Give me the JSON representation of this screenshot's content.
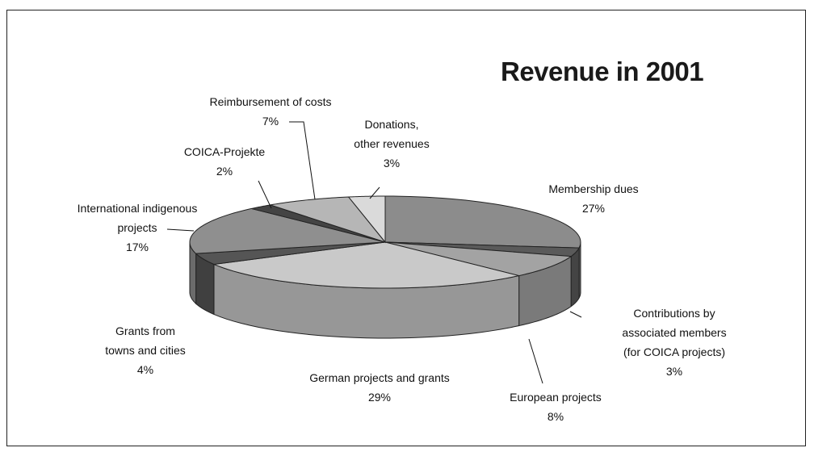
{
  "chart_data": {
    "type": "pie3d",
    "title": "Revenue in 2001",
    "categories": [
      "Membership dues",
      "Contributions by\nassociated members\n(for COICA projects)",
      "European projects",
      "German projects and grants",
      "Grants from\ntowns and cities",
      "International indigenous\nprojects",
      "COICA-Projekte",
      "Reimbursement of costs",
      "Donations,\nother revenues"
    ],
    "values": [
      27,
      3,
      8,
      29,
      4,
      17,
      2,
      7,
      3
    ],
    "value_labels": [
      "27%",
      "3%",
      "8%",
      "29%",
      "4%",
      "17%",
      "2%",
      "7%",
      "3%"
    ],
    "colors": [
      "#8c8c8c",
      "#5a5a5a",
      "#a3a3a3",
      "#c9c9c9",
      "#555555",
      "#8f8f8f",
      "#444444",
      "#b6b6b6",
      "#dadada"
    ]
  }
}
